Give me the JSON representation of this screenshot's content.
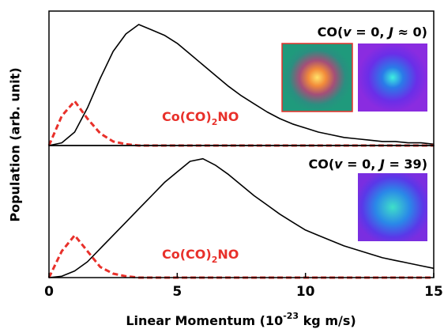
{
  "chart_data": [
    {
      "type": "line",
      "x": [
        0,
        0.5,
        1,
        1.5,
        2,
        2.5,
        3,
        3.5,
        4,
        4.5,
        5,
        5.5,
        6,
        6.5,
        7,
        7.5,
        8,
        8.5,
        9,
        9.5,
        10,
        10.5,
        11,
        11.5,
        12,
        12.5,
        13,
        13.5,
        14,
        14.5,
        15
      ],
      "series": [
        {
          "color": "#000000",
          "values": [
            0,
            0.02,
            0.1,
            0.28,
            0.5,
            0.7,
            0.83,
            0.9,
            0.86,
            0.82,
            0.76,
            0.68,
            0.6,
            0.52,
            0.44,
            0.37,
            0.31,
            0.25,
            0.2,
            0.16,
            0.13,
            0.1,
            0.08,
            0.06,
            0.05,
            0.04,
            0.03,
            0.03,
            0.02,
            0.02,
            0.01
          ]
        },
        {
          "color": "#e8302a",
          "dashed": true,
          "values": [
            0,
            0.22,
            0.33,
            0.2,
            0.09,
            0.03,
            0.01,
            0,
            0,
            0,
            0,
            0,
            0,
            0,
            0,
            0,
            0,
            0,
            0,
            0,
            0,
            0,
            0,
            0,
            0,
            0,
            0,
            0,
            0,
            0,
            0
          ]
        }
      ],
      "xlim": [
        0,
        15
      ],
      "ylim": [
        0,
        1
      ],
      "annotations": [
        {
          "parts": [
            "CO(",
            "v",
            " = 0, ",
            "J",
            " ≈ 0)"
          ],
          "color": "#000000"
        },
        {
          "parts": [
            "Co(CO)",
            "2",
            "NO"
          ],
          "color": "#e8302a"
        }
      ]
    },
    {
      "type": "line",
      "x": [
        0,
        0.5,
        1,
        1.5,
        2,
        2.5,
        3,
        3.5,
        4,
        4.5,
        5,
        5.5,
        6,
        6.5,
        7,
        7.5,
        8,
        8.5,
        9,
        9.5,
        10,
        10.5,
        11,
        11.5,
        12,
        12.5,
        13,
        13.5,
        14,
        14.5,
        15
      ],
      "series": [
        {
          "color": "#000000",
          "values": [
            0,
            0.01,
            0.05,
            0.12,
            0.22,
            0.32,
            0.42,
            0.52,
            0.62,
            0.72,
            0.8,
            0.88,
            0.9,
            0.85,
            0.78,
            0.7,
            0.62,
            0.55,
            0.48,
            0.42,
            0.36,
            0.32,
            0.28,
            0.24,
            0.21,
            0.18,
            0.15,
            0.13,
            0.11,
            0.09,
            0.07
          ]
        },
        {
          "color": "#e8302a",
          "dashed": true,
          "values": [
            0,
            0.2,
            0.32,
            0.2,
            0.08,
            0.03,
            0.01,
            0,
            0,
            0,
            0,
            0,
            0,
            0,
            0,
            0,
            0,
            0,
            0,
            0,
            0,
            0,
            0,
            0,
            0,
            0,
            0,
            0,
            0,
            0,
            0
          ]
        }
      ],
      "xlim": [
        0,
        15
      ],
      "ylim": [
        0,
        1
      ],
      "xticks": [
        0,
        5,
        10,
        15
      ],
      "annotations": [
        {
          "parts": [
            "CO(",
            "v",
            " = 0, ",
            "J",
            " = 39)"
          ],
          "color": "#000000"
        },
        {
          "parts": [
            "Co(CO)",
            "2",
            "NO"
          ],
          "color": "#e8302a"
        }
      ]
    }
  ],
  "y_label": "Population (arb. unit)",
  "x_label_parts": [
    "Linear Momentum (10",
    "-23",
    " kg m/s)"
  ]
}
